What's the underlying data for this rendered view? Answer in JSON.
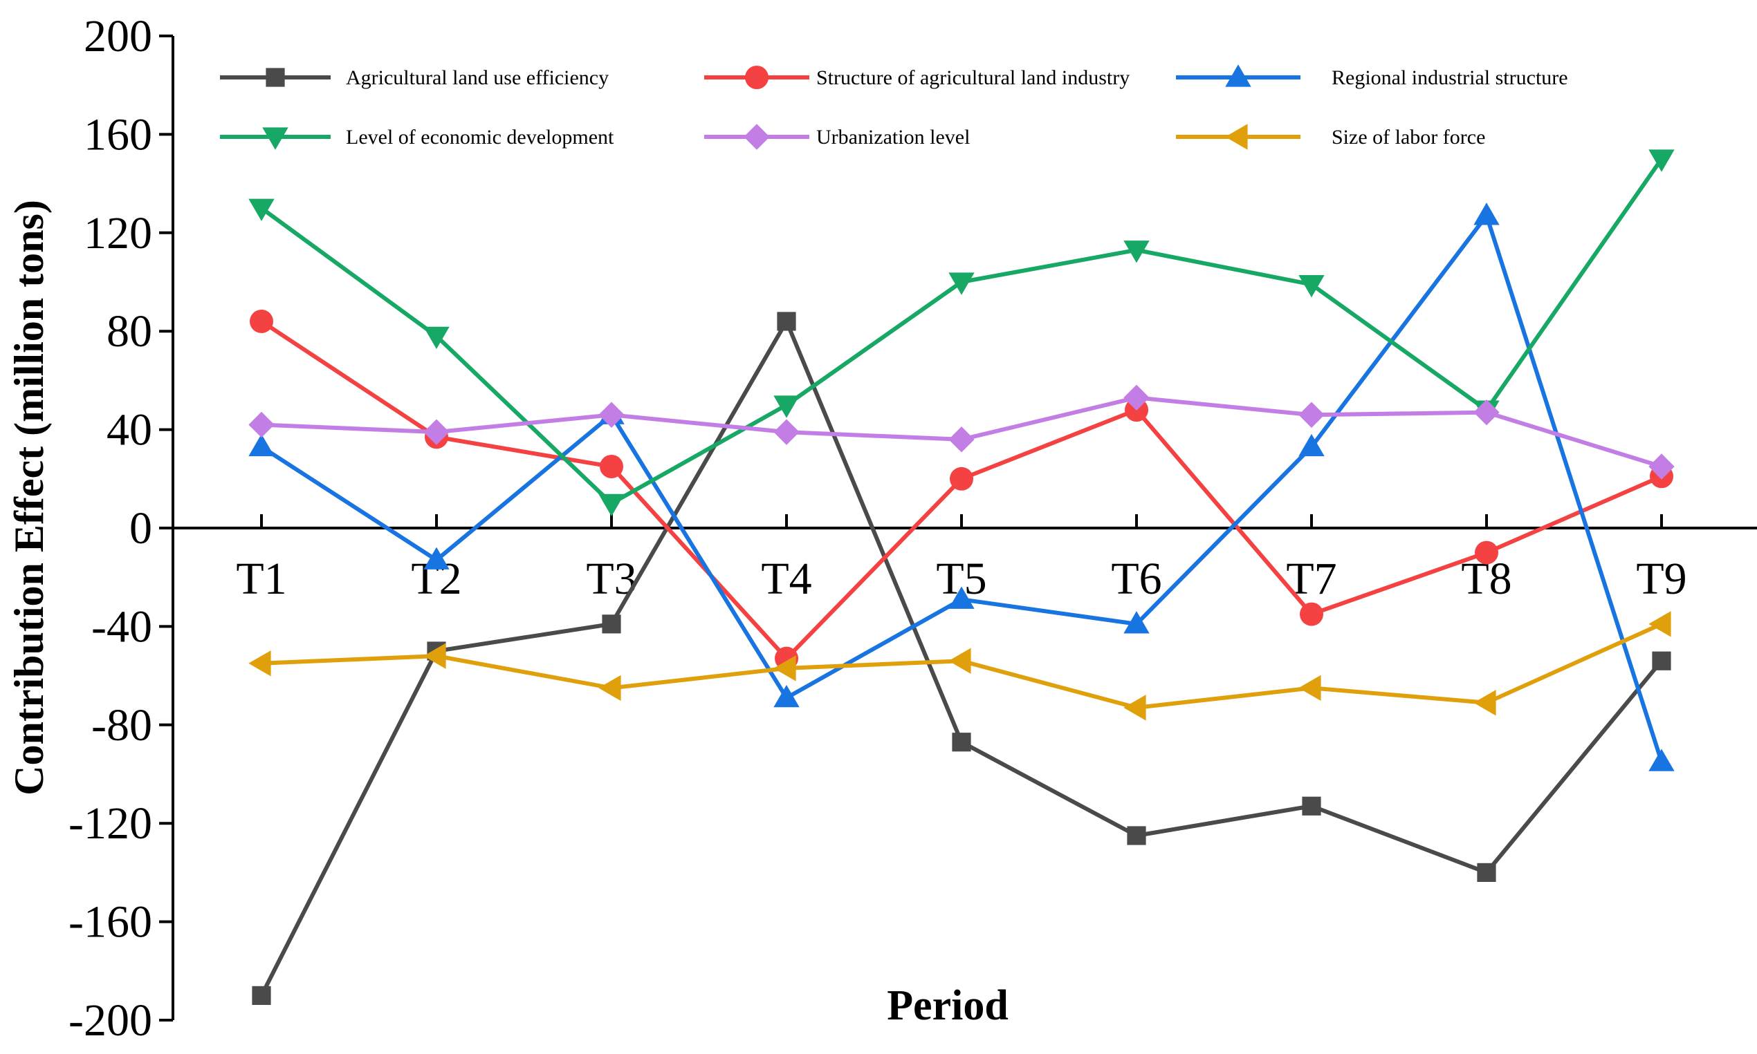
{
  "chart_data": {
    "type": "line",
    "title": "",
    "xlabel": "Period",
    "ylabel": "Contribution Effect (million tons)",
    "ylim": [
      -200,
      200
    ],
    "yticks": [
      200,
      160,
      120,
      80,
      40,
      0,
      -40,
      -80,
      -120,
      -160,
      -200
    ],
    "categories": [
      "T1",
      "T2",
      "T3",
      "T4",
      "T5",
      "T6",
      "T7",
      "T8",
      "T9"
    ],
    "legend_position": "top",
    "series": [
      {
        "name": "Agricultural land use efficiency",
        "color": "#4a4a4a",
        "marker": "square",
        "values": [
          -190,
          -50,
          -39,
          84,
          -87,
          -125,
          -113,
          -140,
          -54
        ]
      },
      {
        "name": "Structure of agricultural land industry",
        "color": "#f44242",
        "marker": "circle",
        "values": [
          84,
          37,
          25,
          -53,
          20,
          48,
          -35,
          -10,
          21
        ]
      },
      {
        "name": "Regional industrial structure",
        "color": "#1874e0",
        "marker": "triangle-up",
        "values": [
          33,
          -13,
          46,
          -69,
          -29,
          -39,
          33,
          127,
          -95
        ]
      },
      {
        "name": "Level of economic development",
        "color": "#16a864",
        "marker": "triangle-down",
        "values": [
          130,
          78,
          10,
          50,
          100,
          113,
          99,
          48,
          150
        ]
      },
      {
        "name": "Urbanization level",
        "color": "#c37ee6",
        "marker": "diamond",
        "values": [
          42,
          39,
          46,
          39,
          36,
          53,
          46,
          47,
          25
        ]
      },
      {
        "name": "Size of labor force",
        "color": "#e0a00c",
        "marker": "triangle-left",
        "values": [
          -55,
          -52,
          -65,
          -57,
          -54,
          -73,
          -65,
          -71,
          -39
        ]
      }
    ]
  }
}
